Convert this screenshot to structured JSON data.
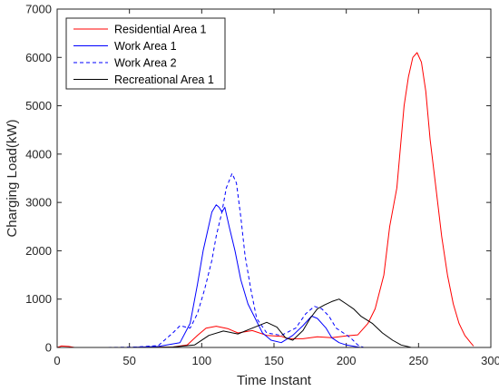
{
  "chart_data": {
    "type": "line",
    "title": "",
    "xlabel": "Time Instant",
    "ylabel": "Charging Load(kW)",
    "xlim": [
      0,
      300
    ],
    "ylim": [
      0,
      7000
    ],
    "xticks": [
      0,
      50,
      100,
      150,
      200,
      250,
      300
    ],
    "yticks": [
      0,
      1000,
      2000,
      3000,
      4000,
      5000,
      6000,
      7000
    ],
    "grid": false,
    "legend_position": "top-left",
    "series": [
      {
        "name": "Residential Area 1",
        "color": "#ff0000",
        "line_style": "solid",
        "points": [
          [
            0,
            0
          ],
          [
            3,
            30
          ],
          [
            8,
            20
          ],
          [
            12,
            0
          ],
          [
            50,
            0
          ],
          [
            80,
            10
          ],
          [
            90,
            50
          ],
          [
            97,
            250
          ],
          [
            103,
            400
          ],
          [
            110,
            440
          ],
          [
            118,
            390
          ],
          [
            125,
            300
          ],
          [
            135,
            350
          ],
          [
            145,
            250
          ],
          [
            155,
            230
          ],
          [
            160,
            180
          ],
          [
            170,
            180
          ],
          [
            180,
            220
          ],
          [
            190,
            200
          ],
          [
            200,
            240
          ],
          [
            208,
            260
          ],
          [
            215,
            500
          ],
          [
            220,
            800
          ],
          [
            226,
            1500
          ],
          [
            230,
            2500
          ],
          [
            235,
            3300
          ],
          [
            240,
            5000
          ],
          [
            243,
            5600
          ],
          [
            246,
            6000
          ],
          [
            249,
            6100
          ],
          [
            252,
            5900
          ],
          [
            255,
            5300
          ],
          [
            258,
            4300
          ],
          [
            262,
            3300
          ],
          [
            266,
            2300
          ],
          [
            270,
            1500
          ],
          [
            274,
            900
          ],
          [
            278,
            500
          ],
          [
            282,
            250
          ],
          [
            286,
            100
          ],
          [
            288,
            30
          ]
        ]
      },
      {
        "name": "Work Area 1",
        "color": "#0000ff",
        "line_style": "solid",
        "points": [
          [
            50,
            0
          ],
          [
            70,
            20
          ],
          [
            85,
            100
          ],
          [
            92,
            500
          ],
          [
            97,
            1300
          ],
          [
            101,
            2000
          ],
          [
            104,
            2400
          ],
          [
            107,
            2800
          ],
          [
            110,
            2950
          ],
          [
            112,
            2900
          ],
          [
            114,
            2800
          ],
          [
            116,
            2900
          ],
          [
            119,
            2500
          ],
          [
            123,
            2000
          ],
          [
            127,
            1400
          ],
          [
            132,
            900
          ],
          [
            137,
            600
          ],
          [
            142,
            300
          ],
          [
            148,
            150
          ],
          [
            155,
            100
          ],
          [
            163,
            250
          ],
          [
            170,
            450
          ],
          [
            176,
            650
          ],
          [
            180,
            600
          ],
          [
            186,
            400
          ],
          [
            190,
            200
          ],
          [
            195,
            100
          ],
          [
            200,
            50
          ],
          [
            210,
            0
          ]
        ]
      },
      {
        "name": "Work Area 2",
        "color": "#0000ff",
        "line_style": "dashed",
        "points": [
          [
            35,
            0
          ],
          [
            55,
            10
          ],
          [
            70,
            40
          ],
          [
            80,
            300
          ],
          [
            85,
            450
          ],
          [
            92,
            400
          ],
          [
            97,
            700
          ],
          [
            102,
            1200
          ],
          [
            107,
            1800
          ],
          [
            110,
            2300
          ],
          [
            114,
            2800
          ],
          [
            117,
            3300
          ],
          [
            121,
            3600
          ],
          [
            124,
            3400
          ],
          [
            127,
            2700
          ],
          [
            130,
            1900
          ],
          [
            134,
            1200
          ],
          [
            138,
            600
          ],
          [
            145,
            300
          ],
          [
            155,
            250
          ],
          [
            165,
            400
          ],
          [
            172,
            700
          ],
          [
            178,
            850
          ],
          [
            183,
            800
          ],
          [
            188,
            650
          ],
          [
            193,
            400
          ],
          [
            198,
            300
          ],
          [
            203,
            200
          ],
          [
            208,
            50
          ],
          [
            212,
            0
          ]
        ]
      },
      {
        "name": "Recreational Area 1",
        "color": "#000000",
        "line_style": "solid",
        "points": [
          [
            60,
            0
          ],
          [
            80,
            10
          ],
          [
            95,
            50
          ],
          [
            105,
            250
          ],
          [
            115,
            340
          ],
          [
            125,
            280
          ],
          [
            135,
            400
          ],
          [
            145,
            520
          ],
          [
            152,
            420
          ],
          [
            158,
            200
          ],
          [
            163,
            150
          ],
          [
            170,
            350
          ],
          [
            175,
            600
          ],
          [
            180,
            800
          ],
          [
            185,
            880
          ],
          [
            190,
            950
          ],
          [
            195,
            1000
          ],
          [
            200,
            900
          ],
          [
            205,
            800
          ],
          [
            210,
            650
          ],
          [
            218,
            500
          ],
          [
            225,
            300
          ],
          [
            232,
            150
          ],
          [
            238,
            50
          ],
          [
            245,
            0
          ]
        ]
      }
    ]
  }
}
